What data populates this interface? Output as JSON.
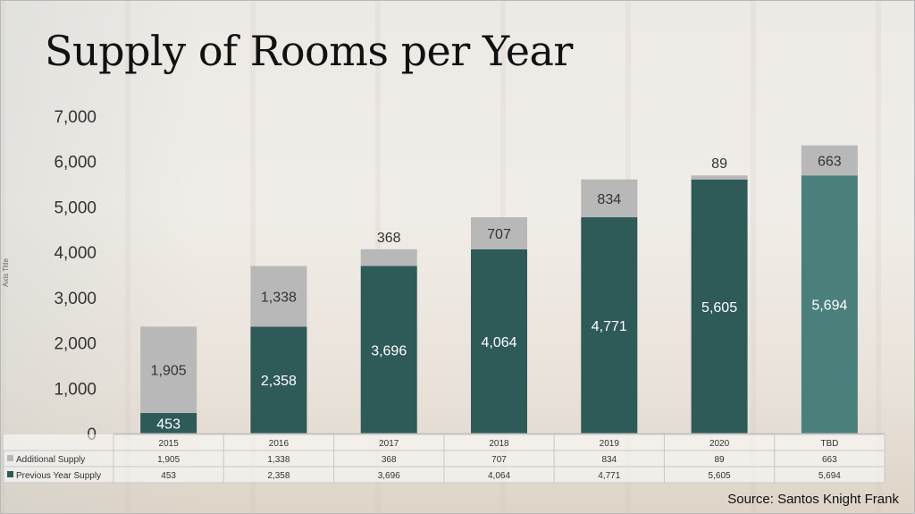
{
  "slide": {
    "title": "Supply of Rooms per Year",
    "source": "Source: Santos Knight Frank"
  },
  "colors": {
    "previous": "#2e5a58",
    "previous_tbd": "#4a7f7c",
    "additional": "#b8b8b8"
  },
  "chart_data": {
    "type": "bar",
    "stacked": true,
    "title": "Supply of Rooms per Year",
    "xlabel": "",
    "ylabel": "Axis Title",
    "ylim": [
      0,
      7000
    ],
    "yticks": [
      "0",
      "1,000",
      "2,000",
      "3,000",
      "4,000",
      "5,000",
      "6,000",
      "7,000"
    ],
    "categories": [
      "2015",
      "2016",
      "2017",
      "2018",
      "2019",
      "2020",
      "TBD"
    ],
    "series": [
      {
        "name": "Previous Year Supply",
        "values": [
          453,
          2358,
          3696,
          4064,
          4771,
          5605,
          5694
        ],
        "labels": [
          "453",
          "2,358",
          "3,696",
          "4,064",
          "4,771",
          "5,605",
          "5,694"
        ]
      },
      {
        "name": "Additional Supply",
        "values": [
          1905,
          1338,
          368,
          707,
          834,
          89,
          663
        ],
        "labels": [
          "1,905",
          "1,338",
          "368",
          "707",
          "834",
          "89",
          "663"
        ]
      }
    ],
    "data_table": true,
    "legend": "data-table"
  }
}
